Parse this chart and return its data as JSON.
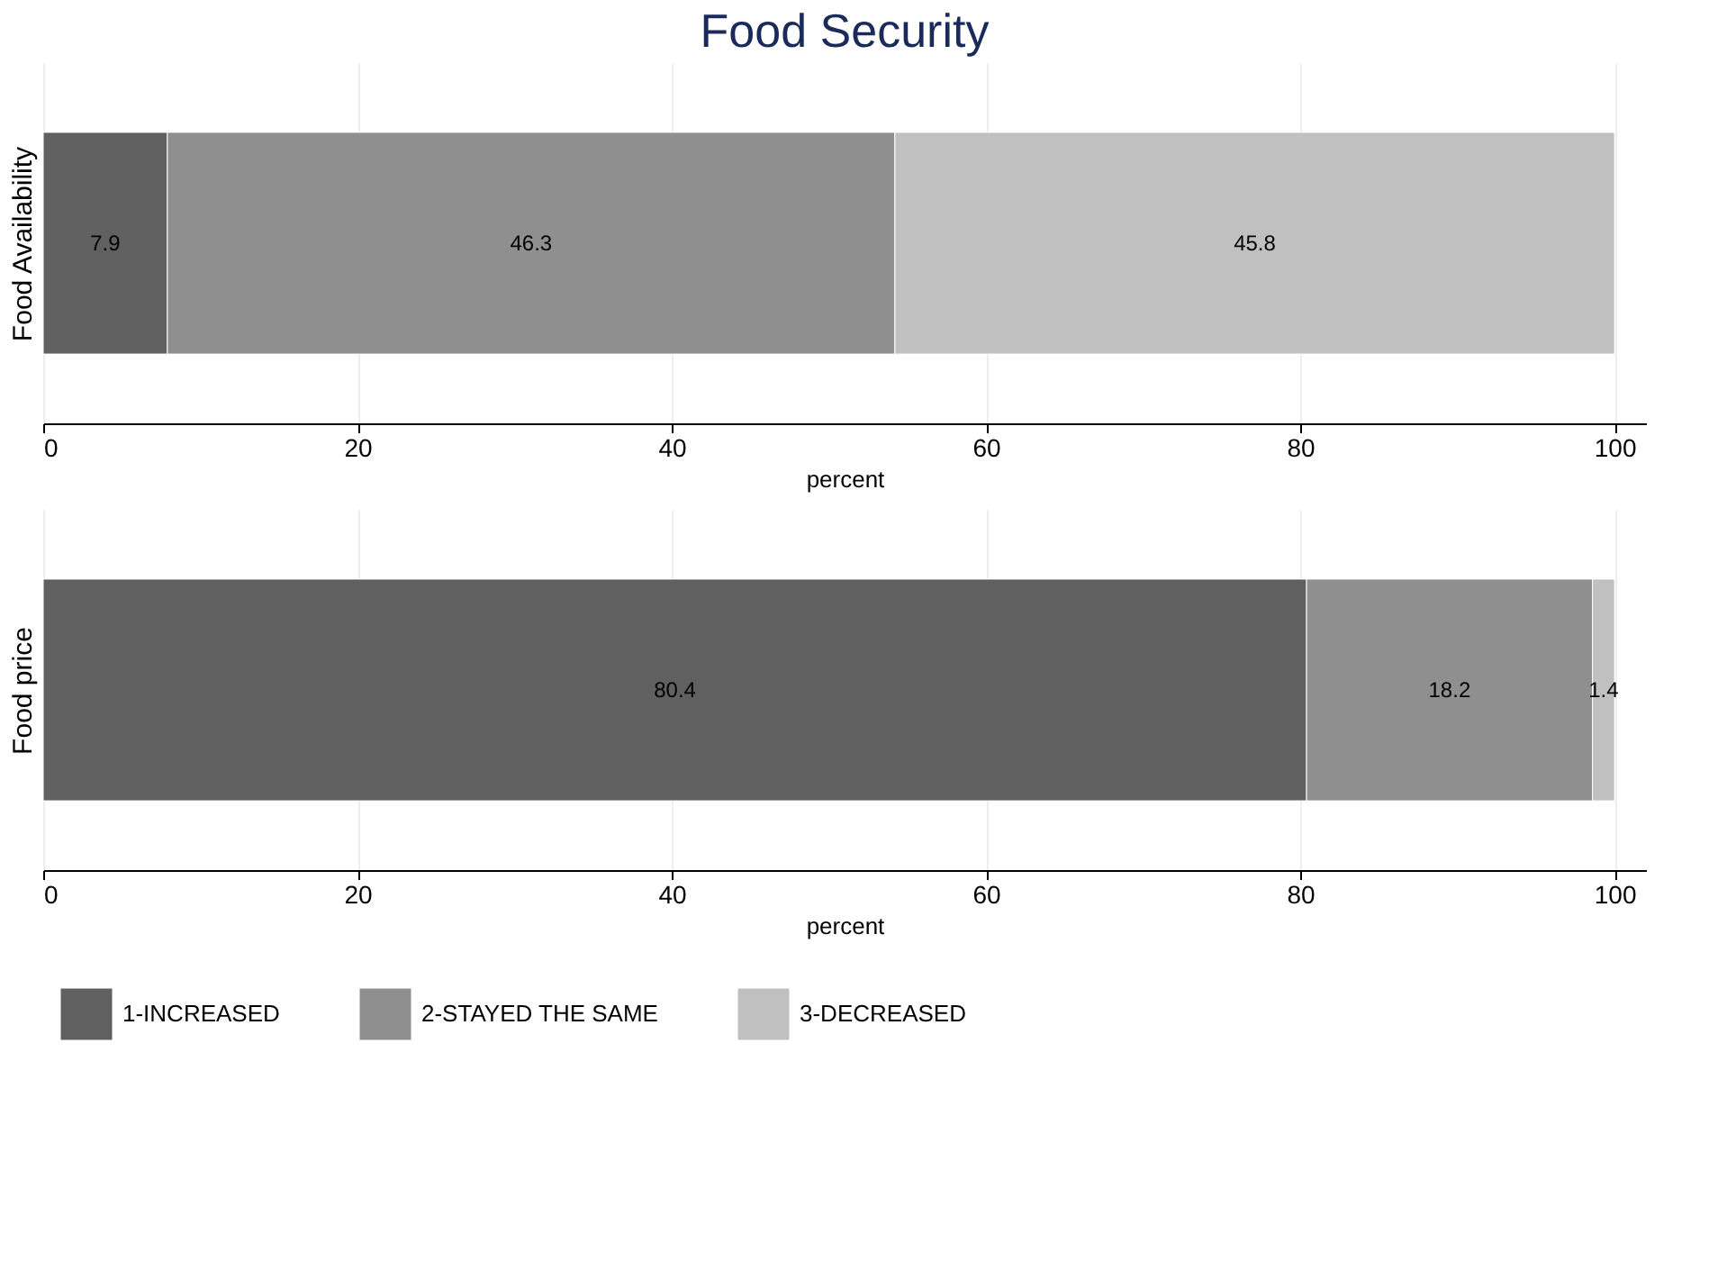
{
  "chart_data": [
    {
      "type": "bar",
      "orientation": "horizontal",
      "stacked": true,
      "title": "Food Security",
      "ylabel": "Food Availability",
      "xlabel": "percent",
      "categories": [
        null
      ],
      "xlim": [
        0,
        102
      ],
      "xticks": [
        0,
        20,
        40,
        60,
        80,
        100
      ],
      "grid": "x",
      "tick_labels": "x",
      "data_labels": true,
      "legend": "bottom",
      "series": [
        {
          "name": "1-INCREASED",
          "color": "#606060",
          "values": [
            7.9
          ]
        },
        {
          "name": "2-STAYED THE SAME",
          "color": "#8f8f8f",
          "values": [
            46.3
          ]
        },
        {
          "name": "3-DECREASED",
          "color": "#c0c0c0",
          "values": [
            45.8
          ]
        }
      ]
    },
    {
      "type": "bar",
      "orientation": "horizontal",
      "stacked": true,
      "ylabel": "Food price",
      "xlabel": "percent",
      "categories": [
        null
      ],
      "xlim": [
        0,
        102
      ],
      "xticks": [
        0,
        20,
        40,
        60,
        80,
        100
      ],
      "grid": "x",
      "tick_labels": "x",
      "data_labels": true,
      "legend": "bottom",
      "series": [
        {
          "name": "1-INCREASED",
          "color": "#606060",
          "values": [
            80.4
          ]
        },
        {
          "name": "2-STAYED THE SAME",
          "color": "#8f8f8f",
          "values": [
            18.2
          ]
        },
        {
          "name": "3-DECREASED",
          "color": "#c0c0c0",
          "values": [
            1.4
          ]
        }
      ]
    }
  ]
}
